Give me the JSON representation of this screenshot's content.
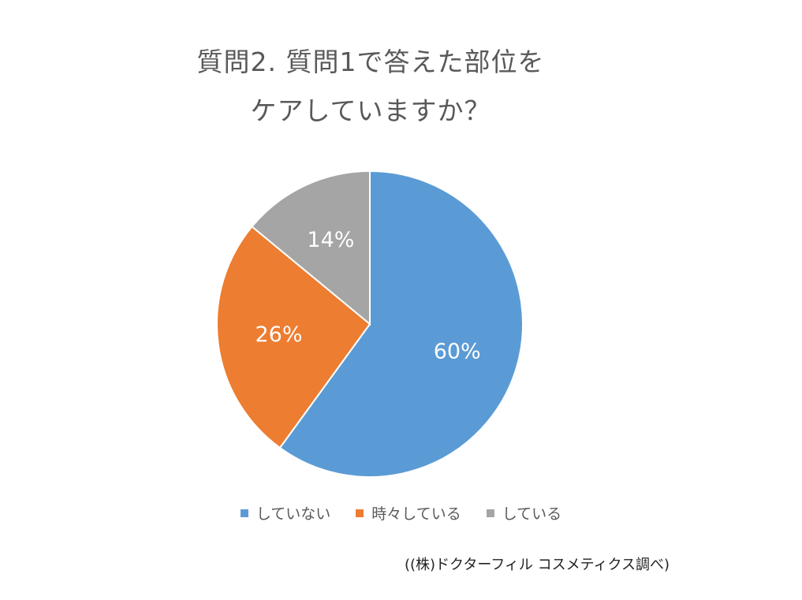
{
  "chart_data": {
    "type": "pie",
    "title_lines": [
      "質問2. 質問1で答えた部位を",
      "ケアしていますか？"
    ],
    "categories": [
      "していない",
      "時々している",
      "している"
    ],
    "values": [
      60,
      26,
      14
    ],
    "labels": [
      "60%",
      "26%",
      "14%"
    ],
    "colors": [
      "#5B9BD5",
      "#ED7D31",
      "#A5A5A5"
    ],
    "legend_position": "bottom"
  },
  "source_note": "((株)ドクターフィル コスメティクス調べ)"
}
